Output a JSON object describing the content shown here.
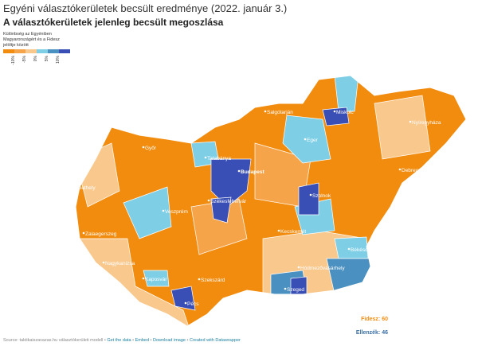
{
  "header": {
    "title": "Egyéni választókerületek becsült eredménye (2022. január 3.)",
    "subtitle": "A választókerületek jelenleg becsült megoszlása"
  },
  "legend": {
    "title_lines": [
      "Különbség az Egyéniben",
      "Magyarországért és a Fidesz",
      "jelöltje között"
    ],
    "labels": [
      "-10%",
      "-5%",
      "0%",
      "5%",
      "10%"
    ]
  },
  "cities": [
    "Salgótarján",
    "Miskolc",
    "Nyíregyháza",
    "Eger",
    "Győr",
    "Tatabánya",
    "Budapest",
    "Debrecen",
    "Szombathely",
    "Veszprém",
    "Székesfehérvár",
    "Szolnok",
    "Zalaegerszeg",
    "Kecskemét",
    "Békéscsaba",
    "Nagykanizsa",
    "Kaposvár",
    "Szekszárd",
    "Hódmezővásárhely",
    "Szeged",
    "Pécs"
  ],
  "results": {
    "fidesz": "Fidesz: 60",
    "opposition": "Ellenzék: 46"
  },
  "footer": {
    "source": "Source: taktikaiszavazas.hu választókerületi modell",
    "links": [
      "Get the data",
      "Embed",
      "Download image",
      "Created with Datawrapper"
    ]
  }
}
